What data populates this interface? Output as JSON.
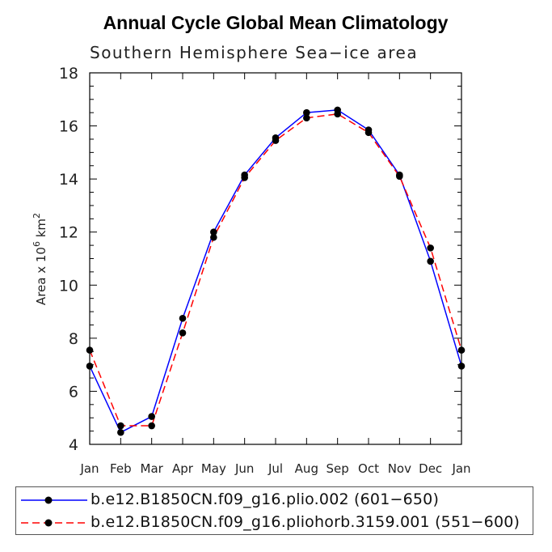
{
  "chart_data": {
    "type": "line",
    "title": "Annual Cycle Global Mean Climatology",
    "subtitle": "Southern Hemisphere Sea−ice area",
    "ylabel_prefix": "Area x 10",
    "ylabel_exp": "6",
    "ylabel_unit": "km",
    "ylabel_unit_exp": "2",
    "categories": [
      "Jan",
      "Feb",
      "Mar",
      "Apr",
      "May",
      "Jun",
      "Jul",
      "Aug",
      "Sep",
      "Oct",
      "Nov",
      "Dec",
      "Jan"
    ],
    "ylim": [
      4,
      18
    ],
    "yticks": [
      4,
      6,
      8,
      10,
      12,
      14,
      16,
      18
    ],
    "series": [
      {
        "name": "b.e12.B1850CN.f09_g16.plio.002 (601−650)",
        "color": "#0000ff",
        "style": "solid",
        "values": [
          6.95,
          4.45,
          5.05,
          8.75,
          12.0,
          14.15,
          15.55,
          16.5,
          16.6,
          15.85,
          14.15,
          10.9,
          6.95
        ]
      },
      {
        "name": "b.e12.B1850CN.f09_g16.pliohorb.3159.001 (551−600)",
        "color": "#ff0000",
        "style": "dashed",
        "values": [
          7.55,
          4.7,
          4.7,
          8.2,
          11.8,
          14.05,
          15.45,
          16.3,
          16.45,
          15.75,
          14.1,
          11.4,
          7.55
        ]
      }
    ],
    "legend_position": "bottom"
  }
}
